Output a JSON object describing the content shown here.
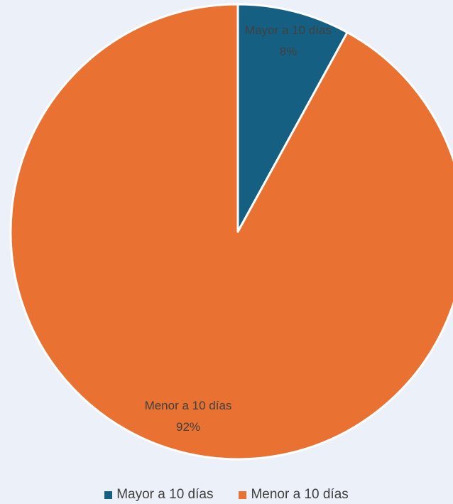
{
  "chart_data": {
    "type": "pie",
    "title": "",
    "slices": [
      {
        "label": "Mayor a 10 días",
        "value": 8,
        "percent_label": "8%",
        "color": "#156082"
      },
      {
        "label": "Menor a 10 días",
        "value": 92,
        "percent_label": "92%",
        "color": "#E97132"
      }
    ],
    "legend_position": "bottom",
    "start_angle_deg": 0,
    "direction": "clockwise"
  },
  "legend": {
    "items": [
      {
        "label": "Mayor a 10 días",
        "color": "#156082"
      },
      {
        "label": "Menor a 10 días",
        "color": "#E97132"
      }
    ]
  }
}
